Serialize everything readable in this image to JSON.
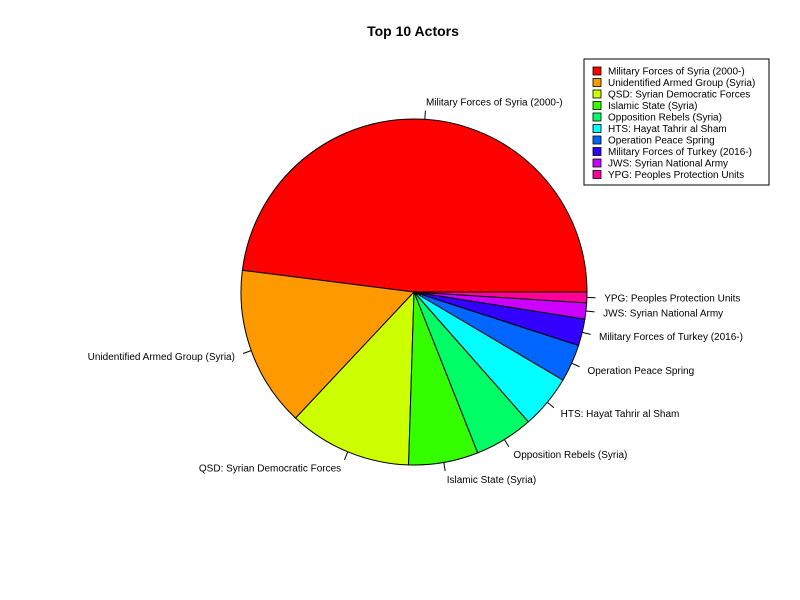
{
  "chart_data": {
    "type": "pie",
    "title": "Top 10 Actors",
    "legend_position": "top-right",
    "slices": [
      {
        "label": "Military Forces of Syria (2000-)",
        "value": 48.0,
        "color": "#FF0000"
      },
      {
        "label": "Unidentified Armed Group (Syria)",
        "value": 15.0,
        "color": "#FF9900"
      },
      {
        "label": "QSD: Syrian Democratic Forces",
        "value": 11.5,
        "color": "#CCFF00"
      },
      {
        "label": "Islamic State (Syria)",
        "value": 6.5,
        "color": "#33FF00"
      },
      {
        "label": "Opposition Rebels (Syria)",
        "value": 5.5,
        "color": "#00FF66"
      },
      {
        "label": "HTS: Hayat Tahrir al Sham",
        "value": 5.0,
        "color": "#00FFFF"
      },
      {
        "label": "Operation Peace Spring",
        "value": 3.5,
        "color": "#0066FF"
      },
      {
        "label": "Military Forces of Turkey (2016-)",
        "value": 2.5,
        "color": "#3300FF"
      },
      {
        "label": "JWS: Syrian National Army",
        "value": 1.5,
        "color": "#CC00FF"
      },
      {
        "label": "YPG: Peoples Protection Units",
        "value": 1.0,
        "color": "#FF0099"
      }
    ]
  }
}
